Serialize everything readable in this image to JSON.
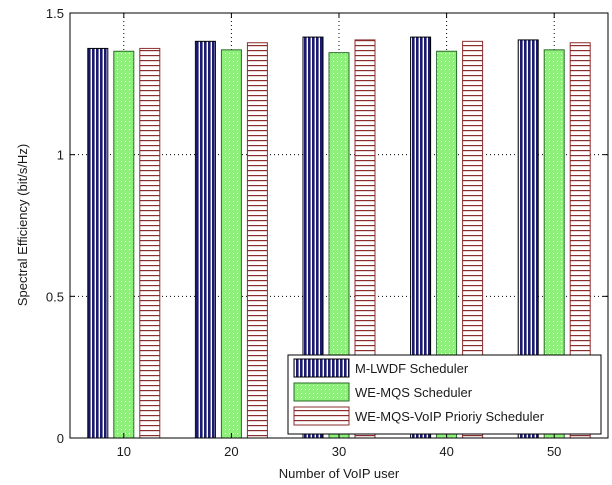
{
  "chart_data": {
    "type": "bar",
    "xlabel": "Number of VoIP user",
    "ylabel": "Spectral Efficiency (bit/s/Hz)",
    "categories": [
      "10",
      "20",
      "30",
      "40",
      "50"
    ],
    "ylim": [
      0,
      1.5
    ],
    "yticks": [
      "0",
      "0.5",
      "1",
      "1.5"
    ],
    "grid": true,
    "legend_position": "bottom-right",
    "series": [
      {
        "name": "M-LWDF Scheduler",
        "values": [
          1.375,
          1.4,
          1.415,
          1.415,
          1.405
        ],
        "color": "#1a1a6e",
        "pattern": "vertical-stripes"
      },
      {
        "name": "WE-MQS Scheduler",
        "values": [
          1.365,
          1.37,
          1.36,
          1.365,
          1.37
        ],
        "color": "#8ef07a",
        "pattern": "dotted"
      },
      {
        "name": "WE-MQS-VoIP Prioriy Scheduler",
        "values": [
          1.375,
          1.395,
          1.405,
          1.4,
          1.395
        ],
        "color": "#8b2d2d",
        "pattern": "horizontal-stripes"
      }
    ]
  }
}
